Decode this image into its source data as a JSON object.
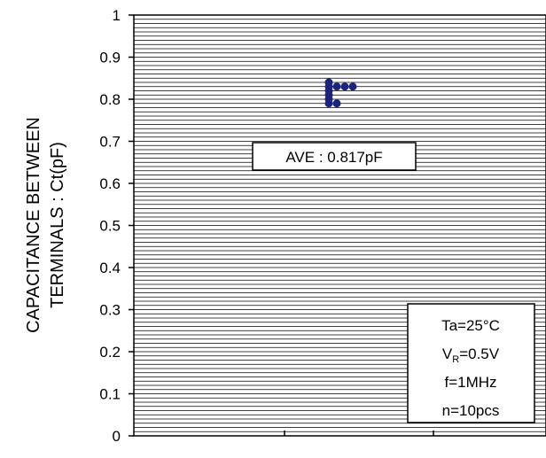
{
  "chart_data": {
    "type": "scatter",
    "title": "",
    "xlabel": "",
    "ylabel": [
      "CAPACITANCE BETWEEN",
      "TERMINALS : Ct(pF)"
    ],
    "ylim": [
      0,
      1
    ],
    "y_ticks": [
      "0",
      "0.1",
      "0.2",
      "0.3",
      "0.4",
      "0.5",
      "0.6",
      "0.7",
      "0.8",
      "0.9",
      "1"
    ],
    "y_minor_step": 0.01,
    "grid": true,
    "series": [
      {
        "color": "#1a237e",
        "points": [
          {
            "x": 0.0,
            "y": 0.84
          },
          {
            "x": 0.0,
            "y": 0.83
          },
          {
            "x": 0.0,
            "y": 0.82
          },
          {
            "x": 0.0,
            "y": 0.81
          },
          {
            "x": 0.0,
            "y": 0.8
          },
          {
            "x": 0.0,
            "y": 0.79
          },
          {
            "x": 1.0,
            "y": 0.83
          },
          {
            "x": 2.0,
            "y": 0.83
          },
          {
            "x": 3.0,
            "y": 0.83
          },
          {
            "x": 1.0,
            "y": 0.79
          }
        ]
      }
    ],
    "annotations": {
      "average": "AVE : 0.817pF",
      "conditions": {
        "temperature": "Ta=25°C",
        "voltage_main": "V",
        "voltage_sub": "R",
        "voltage_value": "=0.5V",
        "frequency": "f=1MHz",
        "samples": "n=10pcs"
      }
    }
  }
}
